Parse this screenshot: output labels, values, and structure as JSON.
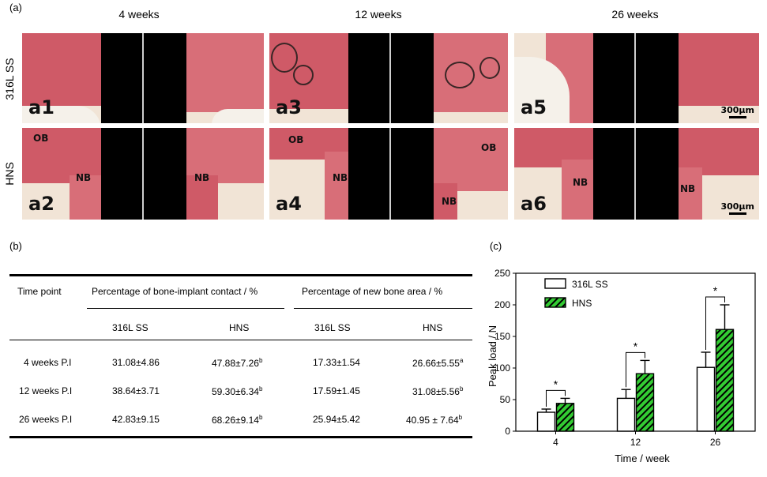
{
  "panel_a": {
    "label": "(a)",
    "columns": [
      "4 weeks",
      "12 weeks",
      "26 weeks"
    ],
    "rows": [
      "316L SS",
      "HNS"
    ],
    "panels": [
      {
        "id": "a1",
        "tags": []
      },
      {
        "id": "a3",
        "tags": []
      },
      {
        "id": "a5",
        "tags": []
      },
      {
        "id": "a2",
        "tags": [
          "OB",
          "NB",
          "NB"
        ]
      },
      {
        "id": "a4",
        "tags": [
          "OB",
          "NB",
          "OB",
          "NB"
        ]
      },
      {
        "id": "a6",
        "tags": [
          "NB",
          "NB"
        ]
      }
    ],
    "scale_bar": "300μm"
  },
  "panel_b": {
    "label": "(b)",
    "header": {
      "time_point": "Time point",
      "bic": "Percentage of bone-implant contact / %",
      "nba": "Percentage of new bone area / %",
      "sub": [
        "316L SS",
        "HNS",
        "316L SS",
        "HNS"
      ]
    },
    "rows": [
      {
        "time": "4 weeks P.I",
        "bic_ss": "31.08±4.86",
        "bic_hns": "47.88±7.26",
        "bic_hns_sup": "b",
        "nba_ss": "17.33±1.54",
        "nba_hns": "26.66±5.55",
        "nba_hns_sup": "a"
      },
      {
        "time": "12 weeks P.I",
        "bic_ss": "38.64±3.71",
        "bic_hns": "59.30±6.34",
        "bic_hns_sup": "b",
        "nba_ss": "17.59±1.45",
        "nba_hns": "31.08±5.56",
        "nba_hns_sup": "b"
      },
      {
        "time": "26 weeks P.I",
        "bic_ss": "42.83±9.15",
        "bic_hns": "68.26±9.14",
        "bic_hns_sup": "b",
        "nba_ss": "25.94±5.42",
        "nba_hns": "40.95 ± 7.64",
        "nba_hns_sup": "b"
      }
    ]
  },
  "chart_data": {
    "panel_label": "(c)",
    "type": "bar",
    "categories": [
      "4",
      "12",
      "26"
    ],
    "series": [
      {
        "name": "316L SS",
        "values": [
          30,
          52,
          101
        ],
        "errors": [
          5,
          14,
          24
        ],
        "fill": "#ffffff"
      },
      {
        "name": "HNS",
        "values": [
          44,
          91,
          161
        ],
        "errors": [
          8,
          21,
          39
        ],
        "fill": "#33cc33"
      }
    ],
    "significance": [
      "*",
      "*",
      "*"
    ],
    "xlabel": "Time / week",
    "ylabel": "Peak load / N",
    "ylim": [
      0,
      250
    ],
    "yticks": [
      0,
      50,
      100,
      150,
      200,
      250
    ],
    "legend": "top-left"
  }
}
